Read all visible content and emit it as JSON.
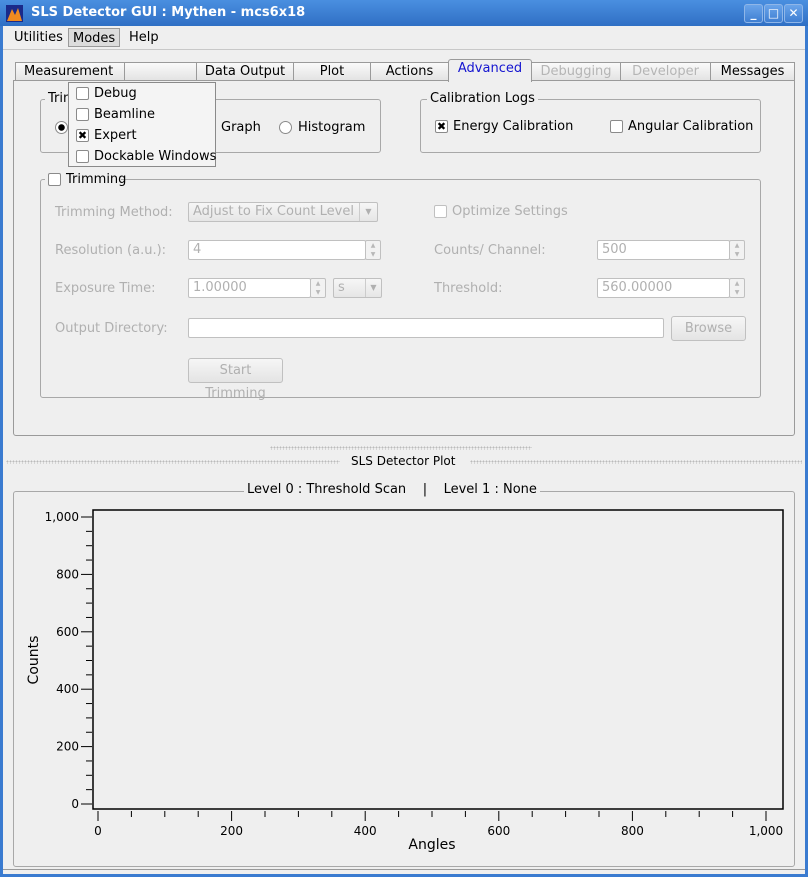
{
  "window": {
    "title": "SLS Detector GUI : Mythen - mcs6x18",
    "controls": [
      "minimize",
      "maximize",
      "close"
    ]
  },
  "menubar": {
    "items": [
      "Utilities",
      "Modes",
      "Help"
    ],
    "open": "Modes"
  },
  "modes_menu": {
    "items": [
      {
        "label": "Debug",
        "checked": false
      },
      {
        "label": "Beamline",
        "checked": false
      },
      {
        "label": "Expert",
        "checked": true
      },
      {
        "label": "Dockable Windows",
        "checked": false
      }
    ]
  },
  "tabs": [
    {
      "label": "Measurement",
      "state": "normal"
    },
    {
      "label": "Data Output",
      "state": "normal"
    },
    {
      "label": "Plot",
      "state": "normal"
    },
    {
      "label": "Actions",
      "state": "normal"
    },
    {
      "label": "Advanced",
      "state": "active"
    },
    {
      "label": "Debugging",
      "state": "disabled"
    },
    {
      "label": "Developer",
      "state": "disabled"
    },
    {
      "label": "Messages",
      "state": "normal"
    }
  ],
  "trim_modes": {
    "title": "Trim",
    "options": [
      {
        "label": "",
        "selected": true
      },
      {
        "label": "Graph",
        "selected": false
      },
      {
        "label": "Histogram",
        "selected": false
      }
    ]
  },
  "calibration": {
    "title": "Calibration Logs",
    "energy": {
      "label": "Energy Calibration",
      "checked": true
    },
    "angular": {
      "label": "Angular Calibration",
      "checked": false
    }
  },
  "trimming": {
    "title": "Trimming",
    "checked": false,
    "method_label": "Trimming Method:",
    "method_value": "Adjust to Fix Count Level",
    "optimize_label": "Optimize Settings",
    "resolution_label": "Resolution (a.u.):",
    "resolution_value": "4",
    "counts_label": "Counts/ Channel:",
    "counts_value": "500",
    "exposure_label": "Exposure Time:",
    "exposure_value": "1.00000",
    "exposure_unit": "s",
    "threshold_label": "Threshold:",
    "threshold_value": "560.00000",
    "output_label": "Output Directory:",
    "output_value": "",
    "browse_label": "Browse",
    "start_label": "Start Trimming"
  },
  "plot_dock": {
    "title": "SLS Detector Plot",
    "group_title": "Level 0 : Threshold Scan    |    Level 1 : None"
  },
  "chart_data": {
    "type": "line",
    "series": [],
    "xlabel": "Angles",
    "ylabel": "Counts",
    "xlim": [
      0,
      1000
    ],
    "ylim": [
      0,
      1000
    ],
    "xticks": [
      0,
      200,
      400,
      600,
      800,
      1000
    ],
    "xtick_labels": [
      "0",
      "200",
      "400",
      "600",
      "800",
      "1,000"
    ],
    "yticks": [
      0,
      200,
      400,
      600,
      800,
      1000
    ],
    "ytick_labels": [
      "0",
      "200",
      "400",
      "600",
      "800",
      "1,000"
    ],
    "minor_step": 50,
    "grid": false
  }
}
